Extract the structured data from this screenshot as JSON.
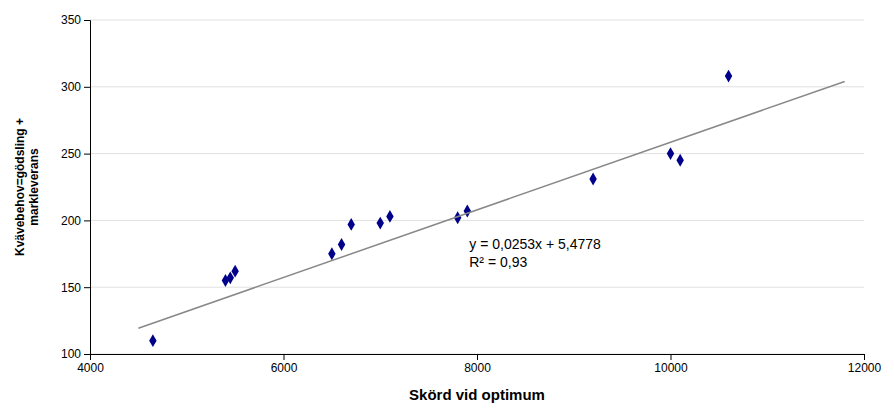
{
  "chart_data": {
    "type": "scatter",
    "xlabel": "Skörd vid optimum",
    "ylabel": "Kvävebehov=gödsling +\nmarkleverans",
    "series": [
      {
        "type": "scatter",
        "color": "#00008B",
        "marker": "diamond",
        "x": [
          4650,
          5400,
          5450,
          5500,
          6500,
          6600,
          6700,
          7000,
          7100,
          7800,
          7900,
          9200,
          10000,
          10100,
          10600
        ],
        "values": [
          110,
          155,
          157,
          162,
          175,
          182,
          197,
          198,
          203,
          202,
          207,
          231,
          250,
          245,
          308
        ]
      },
      {
        "type": "line",
        "color": "#888888",
        "line_style": "solid",
        "x": [
          4500,
          11800
        ],
        "values": [
          119.3278,
          304.0178
        ]
      }
    ],
    "annotations": [
      "y = 0,0253x + 5,4778",
      "R² = 0,93"
    ],
    "xlim": [
      4000,
      12000
    ],
    "ylim": [
      100,
      350
    ],
    "xticks": [
      4000,
      6000,
      8000,
      10000,
      12000
    ],
    "yticks": [
      100,
      150,
      200,
      250,
      300,
      350
    ],
    "grid": "y"
  }
}
